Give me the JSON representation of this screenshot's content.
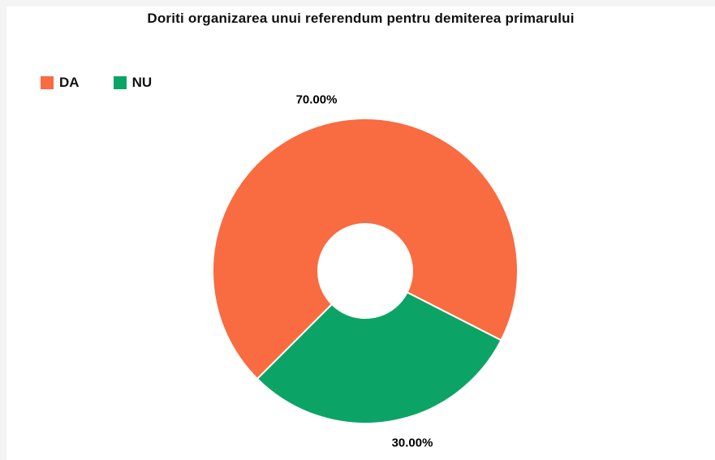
{
  "page": {
    "background_color": "#f4f4f4",
    "canvas_color": "#ffffff"
  },
  "chart_data": {
    "type": "pie",
    "title": "Doriti organizarea unui referendum pentru demiterea primarului",
    "categories": [
      "DA",
      "NU"
    ],
    "values": [
      70,
      30
    ],
    "value_labels": [
      "70.00%",
      "30.00%"
    ],
    "colors": [
      "#f96b40",
      "#0ca466"
    ],
    "legend_position": "top-left",
    "legend_labels": [
      "DA",
      "NU"
    ],
    "donut": true,
    "inner_radius_ratio": 0.31,
    "start_angle": 225,
    "direction": "clockwise"
  }
}
